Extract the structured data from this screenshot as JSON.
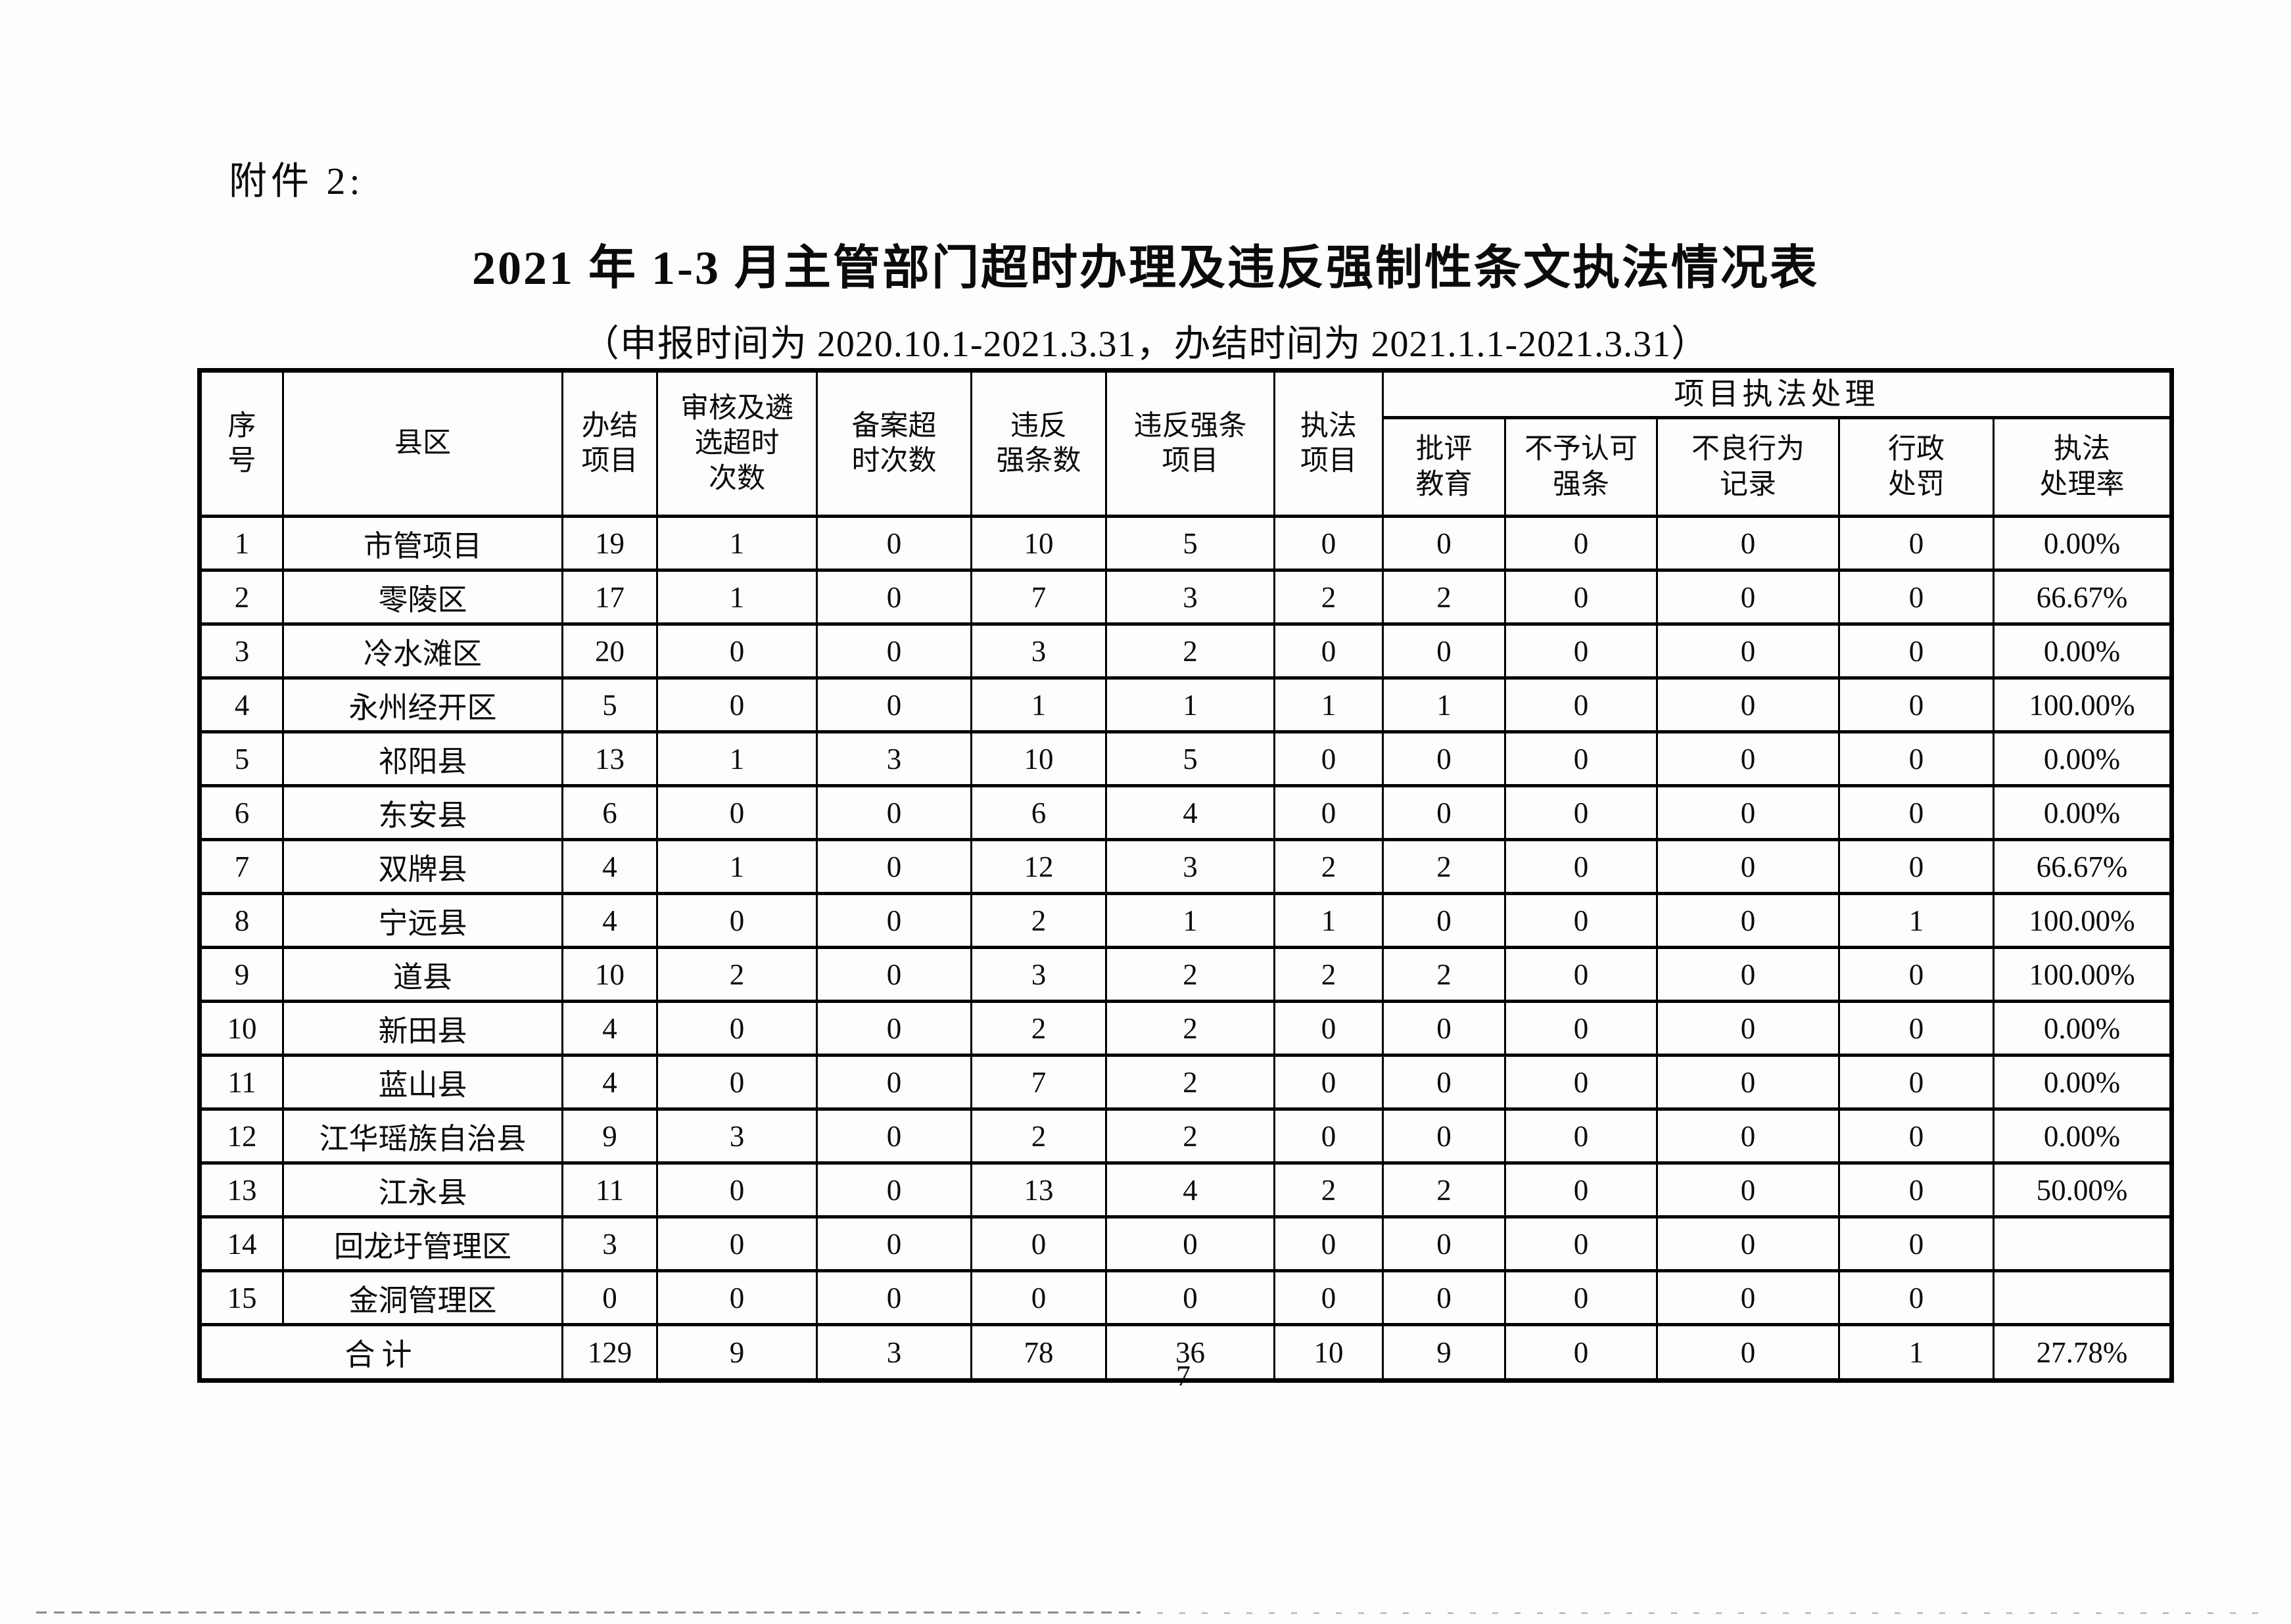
{
  "page": {
    "attachment_label": "附件 2:",
    "title": "2021 年 1-3 月主管部门超时办理及违反强制性条文执法情况表",
    "subtitle": "（申报时间为 2020.10.1-2021.3.31，办结时间为 2021.1.1-2021.3.31）",
    "page_number": "7"
  },
  "table": {
    "header": {
      "seq": "序\n号",
      "county": "县区",
      "completed_projects": "办结\n项目",
      "review_overtime": "审核及遴\n选超时\n次数",
      "filing_overtime": "备案超\n时次数",
      "violation_count": "违反\n强条数",
      "violation_projects": "违反强条\n项目",
      "enforcement_projects": "执法\n项目",
      "enforcement_handling_group": "项目执法处理",
      "criticism_education": "批评\n教育",
      "disapproved_clauses": "不予认可\n强条",
      "bad_behavior_record": "不良行为\n记录",
      "admin_penalty": "行政\n处罚",
      "handling_rate": "执法\n处理率"
    },
    "rows": [
      {
        "seq": "1",
        "county": "市管项目",
        "values": [
          "19",
          "1",
          "0",
          "10",
          "5",
          "0",
          "0",
          "0",
          "0",
          "0",
          "0.00%"
        ]
      },
      {
        "seq": "2",
        "county": "零陵区",
        "values": [
          "17",
          "1",
          "0",
          "7",
          "3",
          "2",
          "2",
          "0",
          "0",
          "0",
          "66.67%"
        ]
      },
      {
        "seq": "3",
        "county": "冷水滩区",
        "values": [
          "20",
          "0",
          "0",
          "3",
          "2",
          "0",
          "0",
          "0",
          "0",
          "0",
          "0.00%"
        ]
      },
      {
        "seq": "4",
        "county": "永州经开区",
        "values": [
          "5",
          "0",
          "0",
          "1",
          "1",
          "1",
          "1",
          "0",
          "0",
          "0",
          "100.00%"
        ]
      },
      {
        "seq": "5",
        "county": "祁阳县",
        "values": [
          "13",
          "1",
          "3",
          "10",
          "5",
          "0",
          "0",
          "0",
          "0",
          "0",
          "0.00%"
        ]
      },
      {
        "seq": "6",
        "county": "东安县",
        "values": [
          "6",
          "0",
          "0",
          "6",
          "4",
          "0",
          "0",
          "0",
          "0",
          "0",
          "0.00%"
        ]
      },
      {
        "seq": "7",
        "county": "双牌县",
        "values": [
          "4",
          "1",
          "0",
          "12",
          "3",
          "2",
          "2",
          "0",
          "0",
          "0",
          "66.67%"
        ]
      },
      {
        "seq": "8",
        "county": "宁远县",
        "values": [
          "4",
          "0",
          "0",
          "2",
          "1",
          "1",
          "0",
          "0",
          "0",
          "1",
          "100.00%"
        ]
      },
      {
        "seq": "9",
        "county": "道县",
        "values": [
          "10",
          "2",
          "0",
          "3",
          "2",
          "2",
          "2",
          "0",
          "0",
          "0",
          "100.00%"
        ]
      },
      {
        "seq": "10",
        "county": "新田县",
        "values": [
          "4",
          "0",
          "0",
          "2",
          "2",
          "0",
          "0",
          "0",
          "0",
          "0",
          "0.00%"
        ]
      },
      {
        "seq": "11",
        "county": "蓝山县",
        "values": [
          "4",
          "0",
          "0",
          "7",
          "2",
          "0",
          "0",
          "0",
          "0",
          "0",
          "0.00%"
        ]
      },
      {
        "seq": "12",
        "county": "江华瑶族自治县",
        "values": [
          "9",
          "3",
          "0",
          "2",
          "2",
          "0",
          "0",
          "0",
          "0",
          "0",
          "0.00%"
        ]
      },
      {
        "seq": "13",
        "county": "江永县",
        "values": [
          "11",
          "0",
          "0",
          "13",
          "4",
          "2",
          "2",
          "0",
          "0",
          "0",
          "50.00%"
        ]
      },
      {
        "seq": "14",
        "county": "回龙圩管理区",
        "values": [
          "3",
          "0",
          "0",
          "0",
          "0",
          "0",
          "0",
          "0",
          "0",
          "0",
          ""
        ]
      },
      {
        "seq": "15",
        "county": "金洞管理区",
        "values": [
          "0",
          "0",
          "0",
          "0",
          "0",
          "0",
          "0",
          "0",
          "0",
          "0",
          ""
        ]
      }
    ],
    "total": {
      "label": "合计",
      "values": [
        "129",
        "9",
        "3",
        "78",
        "36",
        "10",
        "9",
        "0",
        "0",
        "1",
        "27.78%"
      ]
    }
  }
}
